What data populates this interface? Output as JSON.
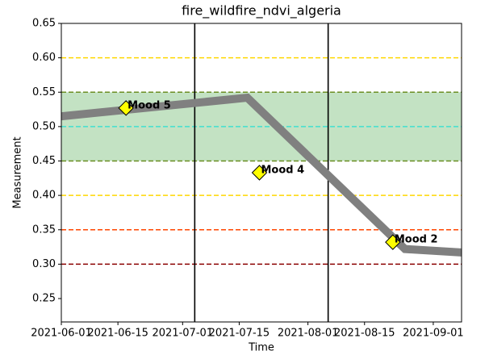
{
  "chart_data": {
    "type": "line",
    "title": "fire_wildfire_ndvi_algeria",
    "x_label": "Time",
    "y_label": "Measurement",
    "x": [
      "2021-06-01",
      "2021-07-17",
      "2021-08-25",
      "2021-09-08"
    ],
    "series": [
      {
        "color": "#808080",
        "values": [
          0.515,
          0.542,
          0.322,
          0.317
        ]
      }
    ],
    "xlim": [
      "2021-06-01",
      "2021-09-08"
    ],
    "xticks": [
      "2021-06-01",
      "2021-06-15",
      "2021-07-01",
      "2021-07-15",
      "2021-08-01",
      "2021-08-15",
      "2021-09-01"
    ],
    "ylim": [
      0.216,
      0.65
    ],
    "yticks": [
      {
        "value": 0.25,
        "label": "0.25"
      },
      {
        "value": 0.3,
        "label": "0.30"
      },
      {
        "value": 0.35,
        "label": "0.35"
      },
      {
        "value": 0.4,
        "label": "0.40"
      },
      {
        "value": 0.45,
        "label": "0.45"
      },
      {
        "value": 0.5,
        "label": "0.50"
      },
      {
        "value": 0.55,
        "label": "0.55"
      },
      {
        "value": 0.6,
        "label": "0.60"
      },
      {
        "value": 0.65,
        "label": "0.65"
      }
    ],
    "band": {
      "ymin": 0.45,
      "ymax": 0.55,
      "color": "#c3e2c3"
    },
    "hlines": [
      {
        "y": 0.6,
        "color": "#ffd700"
      },
      {
        "y": 0.55,
        "color": "#6b8e23"
      },
      {
        "y": 0.5,
        "color": "#40e0d0"
      },
      {
        "y": 0.45,
        "color": "#6b8e23"
      },
      {
        "y": 0.4,
        "color": "#ffd700"
      },
      {
        "y": 0.35,
        "color": "#ff4500"
      },
      {
        "y": 0.3,
        "color": "#8b0000"
      }
    ],
    "vlines": [
      "2021-07-04",
      "2021-08-06"
    ],
    "annotations": [
      {
        "x": "2021-06-17",
        "y": 0.527,
        "label": "Mood 5",
        "color": "#40e0d0"
      },
      {
        "x": "2021-07-20",
        "y": 0.433,
        "label": "Mood 4",
        "color": "#6b8e23"
      },
      {
        "x": "2021-08-22",
        "y": 0.332,
        "label": "Mood 2",
        "color": "#ff4500"
      }
    ]
  }
}
